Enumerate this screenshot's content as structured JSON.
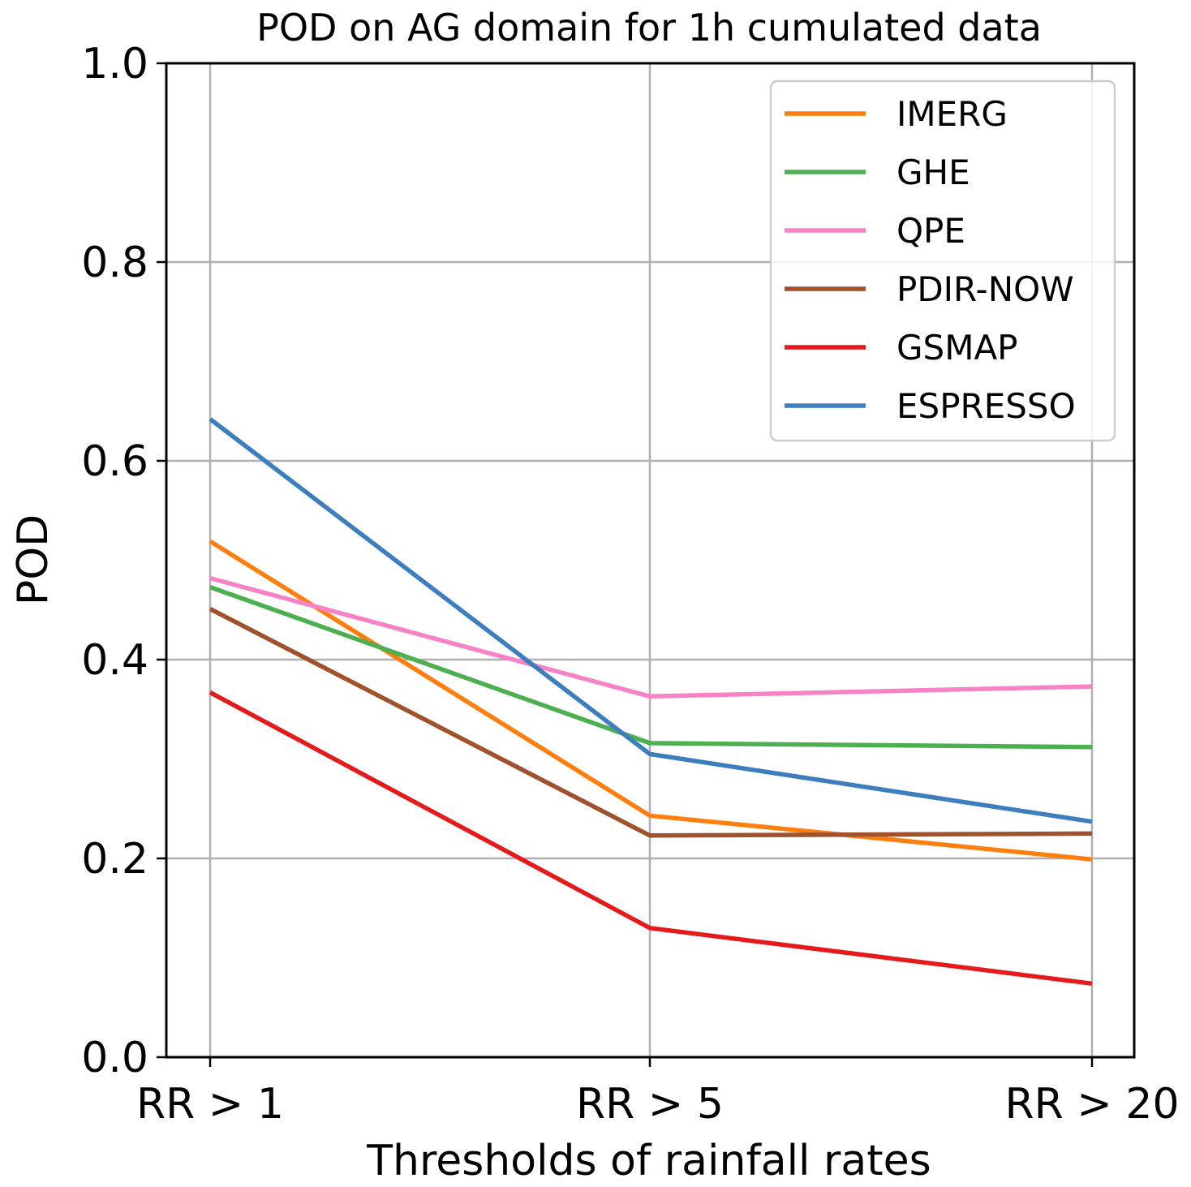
{
  "chart_data": {
    "type": "line",
    "title": "POD on AG domain for 1h cumulated data",
    "xlabel": "Thresholds of rainfall rates",
    "ylabel": "POD",
    "categories": [
      "RR > 1",
      "RR > 5",
      "RR > 20"
    ],
    "ylim": [
      0.0,
      1.0
    ],
    "yticks": [
      "0.0",
      "0.2",
      "0.4",
      "0.6",
      "0.8",
      "1.0"
    ],
    "grid": true,
    "legend_position": "top-right",
    "series": [
      {
        "name": "IMERG",
        "color": "#ff7f0e",
        "values": [
          0.519,
          0.243,
          0.199
        ]
      },
      {
        "name": "GHE",
        "color": "#4caf50",
        "values": [
          0.473,
          0.316,
          0.312
        ]
      },
      {
        "name": "QPE",
        "color": "#f783c6",
        "values": [
          0.482,
          0.363,
          0.373
        ]
      },
      {
        "name": "PDIR-NOW",
        "color": "#a0522d",
        "values": [
          0.451,
          0.223,
          0.225
        ]
      },
      {
        "name": "GSMAP",
        "color": "#e41a1c",
        "values": [
          0.367,
          0.13,
          0.074
        ]
      },
      {
        "name": "ESPRESSO",
        "color": "#3d7ebf",
        "values": [
          0.642,
          0.305,
          0.237
        ]
      }
    ]
  }
}
